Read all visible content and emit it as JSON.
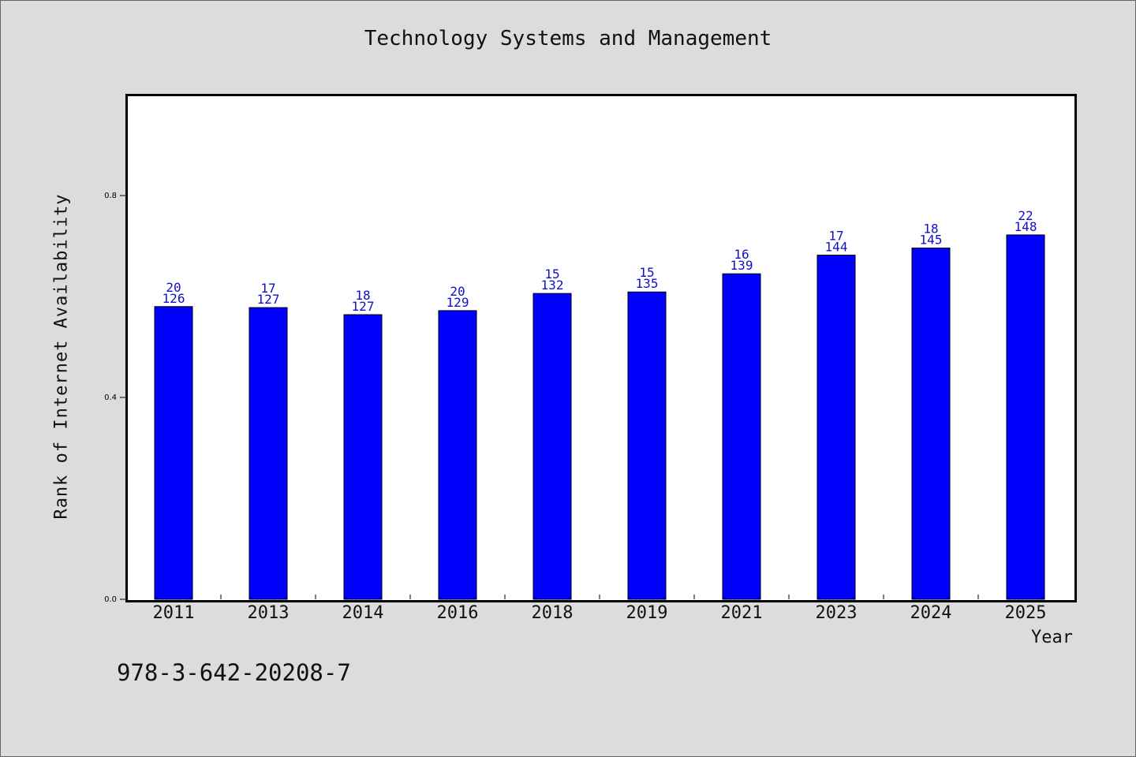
{
  "chart_data": {
    "type": "bar",
    "title": "Technology Systems and Management",
    "xlabel": "Year",
    "ylabel": "Rank of Internet Availability",
    "categories": [
      "2011",
      "2013",
      "2014",
      "2016",
      "2018",
      "2019",
      "2021",
      "2023",
      "2024",
      "2025"
    ],
    "values": [
      0.58,
      0.578,
      0.564,
      0.572,
      0.606,
      0.609,
      0.645,
      0.682,
      0.696,
      0.722
    ],
    "data_labels_top": [
      "20",
      "17",
      "18",
      "20",
      "15",
      "15",
      "16",
      "17",
      "18",
      "22"
    ],
    "data_labels_bottom": [
      "126",
      "127",
      "127",
      "129",
      "132",
      "135",
      "139",
      "144",
      "145",
      "148"
    ],
    "ylim": [
      0,
      1.0
    ],
    "yticks": [
      "0.0",
      "0.4",
      "0.8"
    ],
    "grid": false,
    "legend": "none",
    "bar_color": "#0000ff",
    "label_color": "#1010c8"
  },
  "footer_text": "978-3-642-20208-7"
}
